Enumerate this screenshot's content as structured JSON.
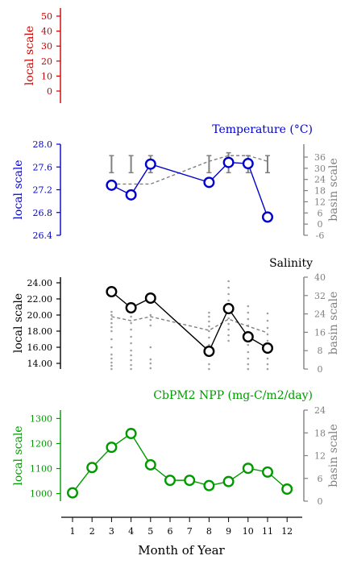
{
  "xlabel": "Month of Year",
  "x_ticks": [
    "1",
    "2",
    "3",
    "4",
    "5",
    "6",
    "7",
    "8",
    "9",
    "10",
    "11",
    "12"
  ],
  "colors": {
    "panel1": "#cc0000",
    "temperature": "#0000cc",
    "salinity": "#000000",
    "npp": "#009900",
    "basin": "#808080",
    "scatter": "#a0a0a0"
  },
  "chart_data": [
    {
      "type": "line",
      "title": "",
      "ylabel": "local scale",
      "y_ticks": [
        "50",
        "40",
        "30",
        "20",
        "10",
        "0"
      ],
      "ylim": [
        0,
        50
      ],
      "series": []
    },
    {
      "type": "line",
      "title": "Temperature (°C)",
      "ylabel": "local scale",
      "ylabel_right": "basin scale",
      "y_ticks": [
        "28.0",
        "27.6",
        "27.2",
        "26.8",
        "26.4"
      ],
      "ylim": [
        26.4,
        28.0
      ],
      "right_ticks": [
        "36",
        "30",
        "24",
        "18",
        "12",
        "6",
        "0",
        "-6"
      ],
      "right_ylim": [
        -6,
        36
      ],
      "series": [
        {
          "role": "local",
          "x": [
            3,
            4,
            5,
            8,
            9,
            10,
            11
          ],
          "y": [
            27.28,
            27.11,
            27.65,
            27.33,
            27.68,
            27.66,
            26.72
          ]
        },
        {
          "role": "basin",
          "x": [
            3,
            4,
            5,
            8,
            9,
            10,
            11
          ],
          "y": [
            27.3,
            27.3,
            27.6,
            27.6,
            28.0,
            28.0,
            26.4
          ],
          "x_line": [
            3,
            5,
            8,
            9,
            10,
            11
          ],
          "y_line": [
            27.3,
            27.3,
            27.7,
            27.8,
            27.8,
            27.7
          ]
        }
      ],
      "basin_errorbars": [
        {
          "x": 3,
          "low": 27.5,
          "high": 27.8
        },
        {
          "x": 4,
          "low": 27.5,
          "high": 27.8
        },
        {
          "x": 5,
          "low": 27.5,
          "high": 27.8
        },
        {
          "x": 8,
          "low": 27.5,
          "high": 27.8
        },
        {
          "x": 9,
          "low": 27.5,
          "high": 27.85
        },
        {
          "x": 10,
          "low": 27.5,
          "high": 27.8
        },
        {
          "x": 11,
          "low": 27.5,
          "high": 27.8
        }
      ]
    },
    {
      "type": "line",
      "title": "Salinity",
      "ylabel": "local scale",
      "ylabel_right": "basin scale",
      "y_ticks": [
        "24.00",
        "22.00",
        "20.00",
        "18.00",
        "16.00",
        "14.00"
      ],
      "ylim": [
        13.0,
        25.0
      ],
      "right_ticks": [
        "40",
        "32",
        "24",
        "16",
        "8",
        "0"
      ],
      "right_ylim": [
        0,
        40
      ],
      "series": [
        {
          "role": "local",
          "x": [
            3,
            4,
            5,
            8,
            9,
            10,
            11
          ],
          "y": [
            22.9,
            20.9,
            22.1,
            15.5,
            20.8,
            17.3,
            15.9
          ]
        },
        {
          "role": "basin",
          "x": [
            3,
            4,
            5,
            8,
            9,
            10,
            11
          ],
          "y": [
            19.8,
            19.3,
            19.8,
            18.1,
            19.5,
            18.6,
            17.8
          ]
        }
      ],
      "scatter_columns": [
        {
          "x": 3,
          "values": [
            13.3,
            13.7,
            14.1,
            14.6,
            15.1,
            16.0,
            17.0,
            18.0,
            18.5,
            19.0,
            19.5,
            20.0,
            20.4
          ]
        },
        {
          "x": 4,
          "values": [
            13.3,
            13.8,
            14.4,
            15.0,
            15.6,
            16.5,
            17.3,
            18.2,
            19.0,
            19.8
          ]
        },
        {
          "x": 5,
          "values": [
            13.4,
            14.0,
            14.5,
            16.0,
            18.7,
            19.4,
            20.0
          ]
        },
        {
          "x": 8,
          "values": [
            13.3,
            13.9,
            15.2,
            16.3,
            17.2,
            18.0,
            18.6,
            19.2,
            19.8,
            20.3
          ]
        },
        {
          "x": 9,
          "values": [
            16.8,
            17.5,
            18.2,
            18.9,
            19.6,
            20.3,
            21.0,
            21.8,
            22.6,
            23.4,
            24.2
          ]
        },
        {
          "x": 10,
          "values": [
            13.3,
            13.9,
            14.6,
            15.4,
            16.3,
            17.1,
            17.9,
            18.7,
            19.5,
            20.3,
            21.1
          ]
        },
        {
          "x": 11,
          "values": [
            13.3,
            13.9,
            14.6,
            15.3,
            16.0,
            16.8,
            17.6,
            18.4,
            19.3,
            20.2
          ]
        }
      ]
    },
    {
      "type": "line",
      "title": "CbPM2 NPP (mg-C/m2/day)",
      "ylabel": "local scale",
      "ylabel_right": "basin scale",
      "y_ticks": [
        "1300",
        "1200",
        "1100",
        "1000"
      ],
      "ylim": [
        960,
        1340
      ],
      "right_ticks": [
        "24",
        "18",
        "12",
        "6",
        "0"
      ],
      "right_ylim": [
        0,
        24
      ],
      "series": [
        {
          "role": "local",
          "x": [
            1,
            2,
            3,
            4,
            5,
            6,
            7,
            8,
            9,
            10,
            11,
            12
          ],
          "y": [
            1003,
            1104,
            1185,
            1240,
            1115,
            1053,
            1053,
            1032,
            1048,
            1101,
            1086,
            1018
          ]
        }
      ]
    }
  ]
}
